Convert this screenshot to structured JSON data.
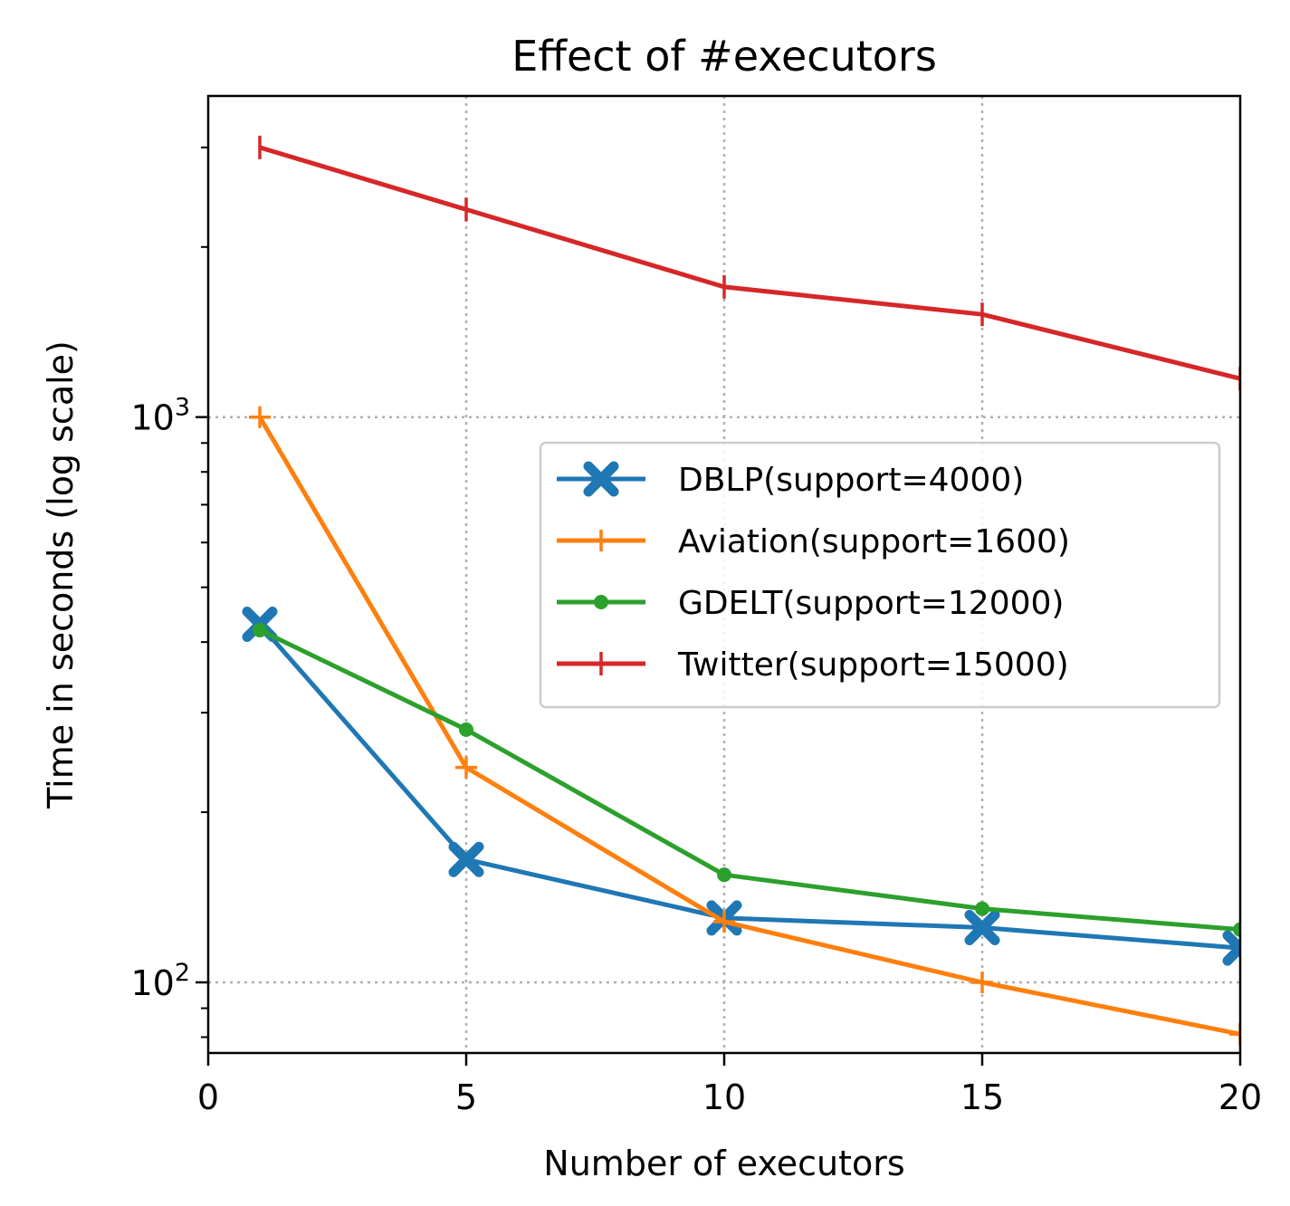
{
  "chart_data": {
    "type": "line",
    "title": "Effect of #executors",
    "xlabel": "Number of executors",
    "ylabel": "Time in seconds (log scale)",
    "xlim": [
      0,
      20
    ],
    "ylim": [
      75,
      3700
    ],
    "yscale": "log",
    "grid": true,
    "legend_position": "center-right",
    "xticks": [
      "0",
      "5",
      "10",
      "15",
      "20"
    ],
    "yticks": [
      {
        "base": "10",
        "exp": "2",
        "value": 100
      },
      {
        "base": "10",
        "exp": "3",
        "value": 1000
      }
    ],
    "series": [
      {
        "name": "DBLP(support=4000)",
        "color": "#1f77b4",
        "marker": "X",
        "x": [
          1,
          5,
          10,
          15,
          20
        ],
        "y": [
          430,
          165,
          130,
          125,
          115
        ]
      },
      {
        "name": "Aviation(support=1600)",
        "color": "#ff7f0e",
        "marker": "+",
        "x": [
          1,
          5,
          10,
          15,
          20
        ],
        "y": [
          1000,
          240,
          128,
          100,
          81
        ]
      },
      {
        "name": "GDELT(support=12000)",
        "color": "#2ca02c",
        "marker": "o",
        "x": [
          1,
          5,
          10,
          15,
          20
        ],
        "y": [
          420,
          280,
          155,
          135,
          124
        ]
      },
      {
        "name": "Twitter(support=15000)",
        "color": "#d62728",
        "marker": "|",
        "x": [
          1,
          5,
          10,
          15,
          20
        ],
        "y": [
          3000,
          2330,
          1700,
          1520,
          1170
        ]
      }
    ]
  }
}
